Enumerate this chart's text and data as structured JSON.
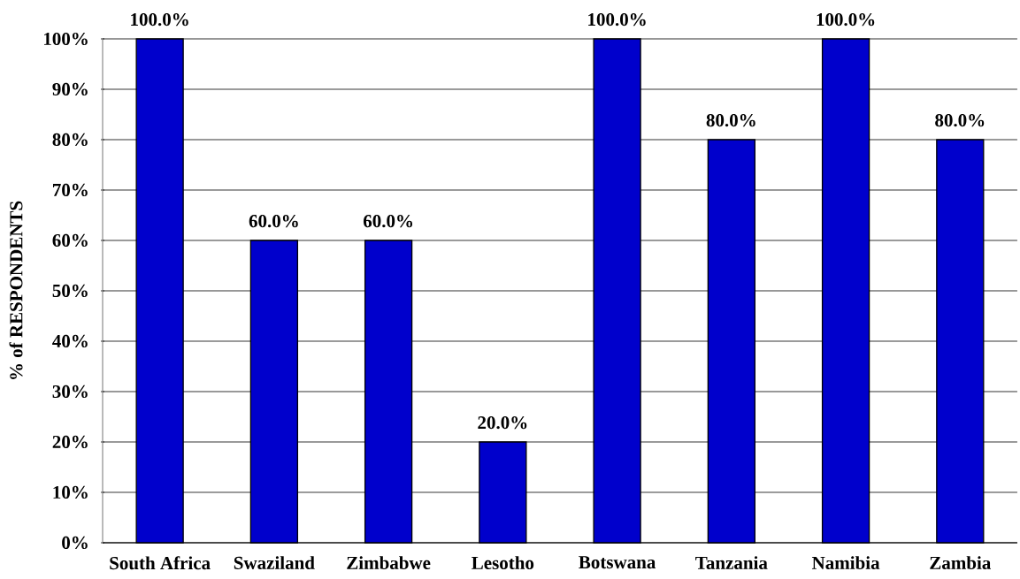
{
  "chart_data": {
    "type": "bar",
    "ylabel": "% of RESPONDENTS",
    "categories": [
      "South Africa",
      "Swaziland",
      "Zimbabwe",
      "Lesotho",
      "Botswana",
      "Tanzania",
      "Namibia",
      "Zambia"
    ],
    "values": [
      100,
      60,
      60,
      20,
      100,
      80,
      100,
      80
    ],
    "value_labels": [
      "100.0%",
      "60.0%",
      "60.0%",
      "20.0%",
      "100.0%",
      "80.0%",
      "100.0%",
      "80.0%"
    ],
    "color": "#0000cc",
    "ylim": [
      0,
      100
    ],
    "yticks": [
      {
        "value": 0,
        "label": "0%"
      },
      {
        "value": 10,
        "label": "10%"
      },
      {
        "value": 20,
        "label": "20%"
      },
      {
        "value": 30,
        "label": "30%"
      },
      {
        "value": 40,
        "label": "40%"
      },
      {
        "value": 50,
        "label": "50%"
      },
      {
        "value": 60,
        "label": "60%"
      },
      {
        "value": 70,
        "label": "70%"
      },
      {
        "value": 80,
        "label": "80%"
      },
      {
        "value": 90,
        "label": "90%"
      },
      {
        "value": 100,
        "label": "100%"
      }
    ],
    "grid": "y"
  }
}
